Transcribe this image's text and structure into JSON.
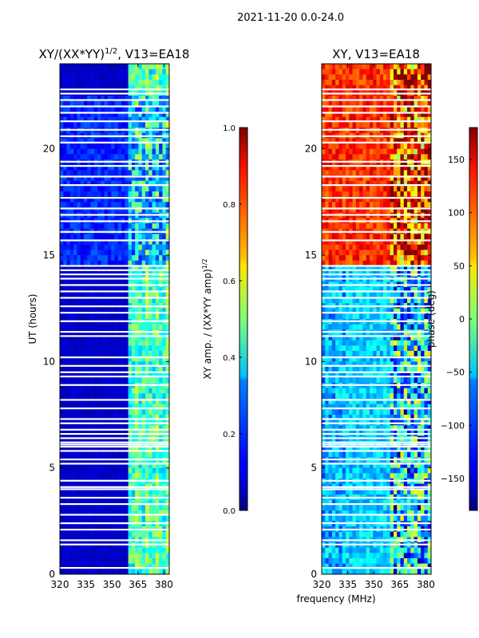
{
  "figure": {
    "suptitle": "2021-11-20 0.0-24.0",
    "xlabel_shared": "frequency (MHz)"
  },
  "chart_data": [
    {
      "type": "heatmap",
      "title": "XY/(XX*YY)",
      "title_exponent": "1/2",
      "title_suffix": ", V13=EA18",
      "xlabel": "",
      "ylabel": "UT (hours)",
      "xlim": [
        320,
        383
      ],
      "ylim": [
        0,
        24
      ],
      "xticks": [
        320,
        335,
        350,
        365,
        380
      ],
      "yticks": [
        0,
        5,
        10,
        15,
        20
      ],
      "colorbar": {
        "label": "XY amp. / (XX*YY amp)",
        "label_exponent": "1/2",
        "range": [
          0.0,
          1.0
        ],
        "ticks": [
          "0.0",
          "0.2",
          "0.4",
          "0.6",
          "0.8",
          "1.0"
        ],
        "colormap": "jet"
      },
      "features": {
        "bright_band_start_mhz": 360,
        "low_value_background": 0.05,
        "band_value_range": [
          0.3,
          0.65
        ],
        "elevated_hours": [
          14.5,
          22.5
        ]
      }
    },
    {
      "type": "heatmap",
      "title": "XY, V13=EA18",
      "xlabel": "frequency (MHz)",
      "ylabel": "",
      "xlim": [
        320,
        383
      ],
      "ylim": [
        0,
        24
      ],
      "xticks": [
        320,
        335,
        350,
        365,
        380
      ],
      "yticks": [
        0,
        5,
        10,
        15,
        20
      ],
      "colorbar": {
        "label": "phase (deg)",
        "range": [
          -180,
          180
        ],
        "ticks": [
          "−150",
          "−100",
          "−50",
          "0",
          "50",
          "100",
          "150"
        ],
        "colormap": "jet"
      },
      "features": {
        "low_hours_phase_deg": -60,
        "high_hours_phase_deg": 120,
        "transition_hour": 14.5,
        "high_freq_edge_mhz": 360
      }
    }
  ],
  "flagged_hours": [
    0.3,
    1.4,
    1.6,
    2.1,
    2.4,
    2.8,
    3.3,
    3.6,
    4.0,
    4.1,
    4.4,
    5.2,
    5.4,
    5.8,
    6.0,
    6.1,
    6.2,
    6.4,
    6.6,
    6.8,
    7.1,
    7.3,
    7.8,
    8.2,
    8.9,
    9.3,
    9.5,
    9.8,
    10.2,
    11.2,
    11.4,
    11.9,
    12.3,
    12.6,
    13.0,
    13.3,
    13.6,
    13.9,
    14.1,
    14.3,
    14.5,
    15.7,
    16.1,
    16.6,
    16.9,
    17.2,
    17.7,
    18.3,
    18.7,
    19.2,
    19.4,
    20.3,
    20.6,
    20.9,
    21.3,
    21.7,
    22.0,
    22.3,
    22.6,
    22.8
  ]
}
